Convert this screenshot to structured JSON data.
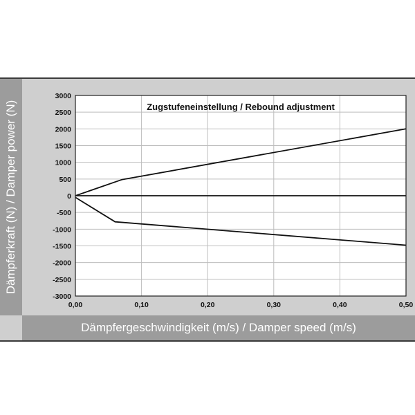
{
  "chart_data": {
    "type": "line",
    "title": "Zugstufeneinstellung / Rebound adjustment",
    "xlabel": "Dämpfergeschwindigkeit (m/s) / Damper speed (m/s)",
    "ylabel": "Dämpferkraft (N) / Damper power (N)",
    "xlim": [
      0,
      0.5
    ],
    "ylim": [
      -3000,
      3000
    ],
    "xticks": [
      "0,00",
      "0,10",
      "0,20",
      "0,30",
      "0,40",
      "0,50"
    ],
    "xtick_values": [
      0,
      0.1,
      0.2,
      0.3,
      0.4,
      0.5
    ],
    "yticks": [
      "3000",
      "2500",
      "2000",
      "1500",
      "1000",
      "500",
      "0",
      "-500",
      "-1000",
      "-1500",
      "-2000",
      "-2500",
      "-3000"
    ],
    "ytick_values": [
      3000,
      2500,
      2000,
      1500,
      1000,
      500,
      0,
      -500,
      -1000,
      -1500,
      -2000,
      -2500,
      -3000
    ],
    "grid": true,
    "series": [
      {
        "x": [
          0,
          0.07,
          0.5
        ],
        "y": [
          0,
          480,
          2000
        ],
        "color": "#111111"
      },
      {
        "x": [
          0,
          0.06,
          0.5
        ],
        "y": [
          -50,
          -780,
          -1480
        ],
        "color": "#111111"
      }
    ]
  }
}
